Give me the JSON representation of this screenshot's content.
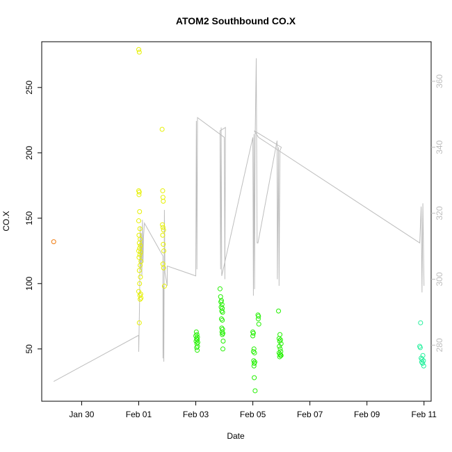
{
  "chart_data": {
    "type": "scatter",
    "title": "ATOM2 Southbound CO.X",
    "xlabel": "Date",
    "ylabel": "CO.X",
    "x_ticks": [
      "Jan 30",
      "Feb 01",
      "Feb 03",
      "Feb 05",
      "Feb 07",
      "Feb 09",
      "Feb 11"
    ],
    "x_tick_days": [
      30,
      32,
      34,
      36,
      38,
      40,
      42
    ],
    "xlim": [
      28.6,
      42.25
    ],
    "ylim": [
      10,
      285
    ],
    "y_ticks": [
      50,
      100,
      150,
      200,
      250
    ],
    "y2lim": [
      263,
      372
    ],
    "y2_ticks": [
      280,
      300,
      320,
      340,
      360
    ],
    "grid": false,
    "legend": "none",
    "series": [
      {
        "kind": "points",
        "color": "#F07C10",
        "points": [
          [
            29.02,
            132
          ]
        ]
      },
      {
        "kind": "points",
        "color": "#E6F000",
        "points": [
          [
            32.0,
            279
          ],
          [
            32.02,
            277
          ],
          [
            32.0,
            171
          ],
          [
            32.01,
            168
          ],
          [
            32.02,
            170
          ],
          [
            32.03,
            155
          ],
          [
            32.0,
            148
          ],
          [
            32.04,
            142
          ],
          [
            32.01,
            137
          ],
          [
            32.05,
            134
          ],
          [
            32.02,
            131
          ],
          [
            32.06,
            129
          ],
          [
            32.03,
            127
          ],
          [
            32.0,
            125
          ],
          [
            32.07,
            124
          ],
          [
            32.04,
            122
          ],
          [
            32.01,
            120
          ],
          [
            32.08,
            117
          ],
          [
            32.05,
            114
          ],
          [
            32.02,
            110
          ],
          [
            32.06,
            105
          ],
          [
            32.03,
            100
          ],
          [
            32.0,
            94
          ],
          [
            32.07,
            92
          ],
          [
            32.04,
            91
          ],
          [
            32.08,
            89
          ],
          [
            32.05,
            88
          ],
          [
            32.02,
            70
          ],
          [
            32.82,
            218
          ],
          [
            32.84,
            171
          ],
          [
            32.85,
            166
          ],
          [
            32.86,
            163
          ],
          [
            32.83,
            145
          ],
          [
            32.85,
            143
          ],
          [
            32.87,
            141
          ],
          [
            32.84,
            137
          ],
          [
            32.86,
            130
          ],
          [
            32.88,
            125
          ],
          [
            32.85,
            115
          ],
          [
            32.87,
            112
          ],
          [
            32.9,
            98
          ]
        ]
      },
      {
        "kind": "points",
        "color": "#22F000",
        "points": [
          [
            34.02,
            63
          ],
          [
            34.04,
            61
          ],
          [
            34.0,
            60
          ],
          [
            34.06,
            59
          ],
          [
            34.03,
            58
          ],
          [
            34.05,
            57
          ],
          [
            34.01,
            56
          ],
          [
            34.07,
            55
          ],
          [
            34.04,
            54
          ],
          [
            34.06,
            52
          ],
          [
            34.03,
            51
          ],
          [
            34.05,
            49
          ],
          [
            34.85,
            96
          ],
          [
            34.87,
            90
          ],
          [
            34.9,
            87
          ],
          [
            34.88,
            86
          ],
          [
            34.92,
            84
          ],
          [
            34.89,
            82
          ],
          [
            34.93,
            81
          ],
          [
            34.91,
            79
          ],
          [
            34.94,
            78
          ],
          [
            34.9,
            73
          ],
          [
            34.93,
            72
          ],
          [
            34.91,
            66
          ],
          [
            34.94,
            65
          ],
          [
            34.92,
            63
          ],
          [
            34.95,
            62
          ],
          [
            34.93,
            61
          ],
          [
            34.96,
            56
          ],
          [
            34.95,
            50
          ],
          [
            36.0,
            63
          ],
          [
            36.02,
            62
          ],
          [
            36.0,
            60
          ],
          [
            36.04,
            50
          ],
          [
            36.02,
            48
          ],
          [
            36.06,
            47
          ],
          [
            36.03,
            41
          ],
          [
            36.07,
            40
          ],
          [
            36.05,
            39
          ],
          [
            36.04,
            37
          ],
          [
            36.05,
            28
          ],
          [
            36.08,
            18
          ],
          [
            36.18,
            76
          ],
          [
            36.2,
            75
          ],
          [
            36.19,
            73
          ],
          [
            36.21,
            69
          ],
          [
            36.9,
            79
          ],
          [
            36.95,
            61
          ],
          [
            36.92,
            58
          ],
          [
            36.97,
            57
          ],
          [
            36.94,
            56
          ],
          [
            36.99,
            54
          ],
          [
            36.93,
            52
          ],
          [
            36.96,
            50
          ],
          [
            36.98,
            48
          ],
          [
            36.92,
            47
          ],
          [
            36.95,
            46
          ],
          [
            36.97,
            45
          ],
          [
            36.94,
            44
          ],
          [
            36.99,
            45
          ]
        ]
      },
      {
        "kind": "points",
        "color": "#22F09C",
        "points": [
          [
            41.88,
            70
          ],
          [
            41.85,
            52
          ],
          [
            41.87,
            51
          ],
          [
            41.96,
            45
          ],
          [
            41.9,
            43
          ],
          [
            41.93,
            42
          ],
          [
            41.98,
            41
          ],
          [
            41.92,
            40
          ],
          [
            41.95,
            39
          ],
          [
            41.99,
            37
          ]
        ]
      },
      {
        "kind": "line",
        "axis": "right",
        "color": "#BDBDBD",
        "points": [
          [
            29.02,
            269
          ],
          [
            32.0,
            283
          ],
          [
            32.0,
            278
          ],
          [
            32.03,
            293
          ],
          [
            32.05,
            316
          ],
          [
            32.07,
            303
          ],
          [
            32.09,
            314
          ],
          [
            32.11,
            301
          ],
          [
            32.13,
            318
          ],
          [
            32.15,
            305
          ],
          [
            32.17,
            313
          ],
          [
            32.2,
            317
          ],
          [
            32.85,
            307
          ],
          [
            32.85,
            276
          ],
          [
            32.87,
            298
          ],
          [
            32.88,
            275
          ],
          [
            32.9,
            321
          ],
          [
            32.92,
            302
          ],
          [
            33.0,
            298
          ],
          [
            33.0,
            304
          ],
          [
            34.0,
            301
          ],
          [
            34.02,
            348
          ],
          [
            34.04,
            303
          ],
          [
            34.06,
            349
          ],
          [
            35.0,
            343
          ],
          [
            35.02,
            300
          ],
          [
            35.04,
            346
          ],
          [
            34.85,
            345
          ],
          [
            34.87,
            303
          ],
          [
            34.89,
            346
          ],
          [
            34.91,
            301
          ],
          [
            36.0,
            343
          ],
          [
            36.02,
            295
          ],
          [
            36.04,
            344
          ],
          [
            36.06,
            297
          ],
          [
            36.08,
            342
          ],
          [
            36.12,
            367
          ],
          [
            36.15,
            311
          ],
          [
            36.18,
            311
          ],
          [
            36.85,
            342
          ],
          [
            36.86,
            300
          ],
          [
            36.9,
            340
          ],
          [
            36.92,
            298
          ],
          [
            36.95,
            339
          ],
          [
            37.0,
            340
          ],
          [
            36.05,
            345
          ],
          [
            36.2,
            343
          ],
          [
            41.85,
            311
          ],
          [
            41.9,
            322
          ],
          [
            41.93,
            296
          ],
          [
            41.96,
            323
          ],
          [
            42.0,
            298
          ]
        ]
      }
    ]
  }
}
